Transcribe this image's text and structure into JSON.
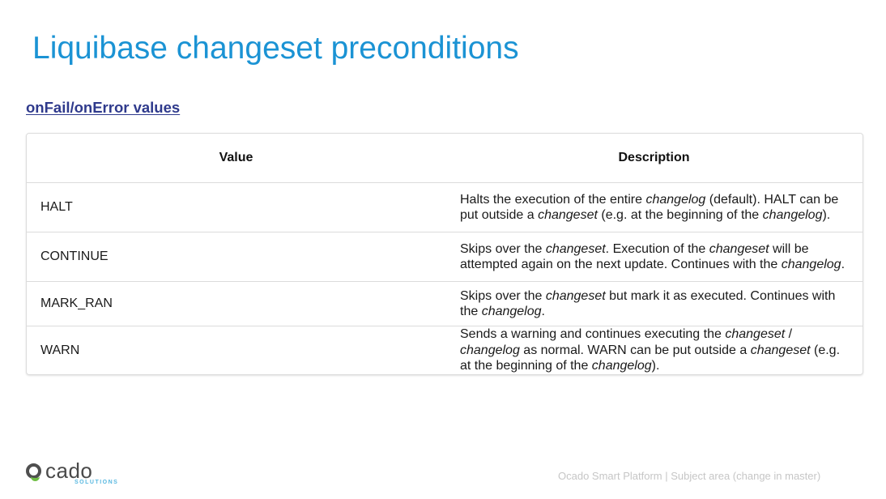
{
  "slide": {
    "title": "Liquibase changeset preconditions",
    "section_link": "onFail/onError values"
  },
  "table": {
    "headers": [
      "Value",
      "Description"
    ],
    "rows": [
      {
        "value": "HALT",
        "description": [
          {
            "t": "Halts the execution of the entire "
          },
          {
            "t": "changelog",
            "i": true
          },
          {
            "t": " (default). HALT can be put outside a "
          },
          {
            "t": "changeset",
            "i": true
          },
          {
            "t": " (e.g. at the beginning of the "
          },
          {
            "t": "changelog",
            "i": true
          },
          {
            "t": ")."
          }
        ]
      },
      {
        "value": "CONTINUE",
        "description": [
          {
            "t": "Skips over the "
          },
          {
            "t": "changeset",
            "i": true
          },
          {
            "t": ". Execution of the "
          },
          {
            "t": "changeset",
            "i": true
          },
          {
            "t": " will be attempted again on the next update. Continues with the "
          },
          {
            "t": "changelog",
            "i": true
          },
          {
            "t": "."
          }
        ]
      },
      {
        "value": "MARK_RAN",
        "description": [
          {
            "t": "Skips over the "
          },
          {
            "t": "changeset",
            "i": true
          },
          {
            "t": " but mark it as executed. Continues with the "
          },
          {
            "t": "changelog",
            "i": true
          },
          {
            "t": "."
          }
        ]
      },
      {
        "value": "WARN",
        "description": [
          {
            "t": "Sends a warning and continues executing the "
          },
          {
            "t": "changeset",
            "i": true
          },
          {
            "t": " / "
          },
          {
            "t": "changelog",
            "i": true
          },
          {
            "t": " as normal. WARN can be put outside a "
          },
          {
            "t": "changeset",
            "i": true
          },
          {
            "t": " (e.g. at the beginning of the "
          },
          {
            "t": "changelog",
            "i": true
          },
          {
            "t": ")."
          }
        ]
      }
    ]
  },
  "logo": {
    "word": "cado",
    "sub": "SOLUTIONS",
    "colors": {
      "ring": "#4f4f4f",
      "accent": "#6fbe44",
      "sub": "#58b8e0"
    }
  },
  "footer": {
    "text": "Ocado Smart Platform | Subject area (change in master)"
  },
  "colors": {
    "title": "#1b93d4",
    "link": "#2f3a8c",
    "border": "#dcdcdc",
    "footer": "#c6c6c6"
  }
}
